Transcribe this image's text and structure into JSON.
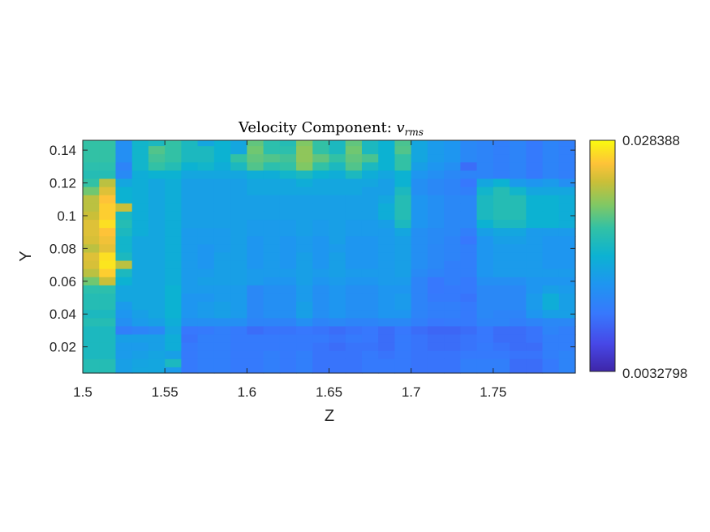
{
  "chart_data": {
    "type": "heatmap",
    "title": "Velocity Component: ",
    "title_symbol": "v",
    "title_subscript": "rms",
    "xlabel": "Z",
    "ylabel": "Y",
    "xlim": [
      1.5,
      1.8
    ],
    "ylim": [
      0.004,
      0.146
    ],
    "xticks": [
      1.5,
      1.55,
      1.6,
      1.65,
      1.7,
      1.75
    ],
    "xtick_labels": [
      "1.5",
      "1.55",
      "1.6",
      "1.65",
      "1.7",
      "1.75"
    ],
    "yticks": [
      0.02,
      0.04,
      0.06,
      0.08,
      0.1,
      0.12,
      0.14
    ],
    "ytick_labels": [
      "0.02",
      "0.04",
      "0.06",
      "0.08",
      "0.1",
      "0.12",
      "0.14"
    ],
    "colorbar": {
      "min": 0.0032798,
      "max": 0.028388,
      "min_label": "0.0032798",
      "max_label": "0.028388",
      "colormap": "parula"
    },
    "z_centers": [
      1.505,
      1.515,
      1.525,
      1.535,
      1.545,
      1.555,
      1.565,
      1.575,
      1.585,
      1.595,
      1.605,
      1.615,
      1.625,
      1.635,
      1.645,
      1.655,
      1.665,
      1.675,
      1.685,
      1.695,
      1.705,
      1.715,
      1.725,
      1.735,
      1.745,
      1.755,
      1.765,
      1.775,
      1.785,
      1.795
    ],
    "y_centers": [
      0.145,
      0.14,
      0.135,
      0.13,
      0.125,
      0.12,
      0.115,
      0.11,
      0.105,
      0.1,
      0.095,
      0.09,
      0.085,
      0.08,
      0.075,
      0.07,
      0.065,
      0.06,
      0.055,
      0.05,
      0.045,
      0.04,
      0.035,
      0.03,
      0.025,
      0.02,
      0.015,
      0.01,
      0.005
    ],
    "values": [
      [
        0.62,
        0.62,
        0.35,
        0.52,
        0.55,
        0.62,
        0.55,
        0.45,
        0.5,
        0.45,
        0.68,
        0.6,
        0.58,
        0.72,
        0.62,
        0.55,
        0.68,
        0.55,
        0.5,
        0.65,
        0.45,
        0.4,
        0.38,
        0.32,
        0.3,
        0.28,
        0.3,
        0.26,
        0.3,
        0.28
      ],
      [
        0.62,
        0.62,
        0.35,
        0.52,
        0.66,
        0.62,
        0.55,
        0.55,
        0.5,
        0.45,
        0.7,
        0.6,
        0.6,
        0.74,
        0.62,
        0.55,
        0.7,
        0.55,
        0.5,
        0.66,
        0.45,
        0.4,
        0.38,
        0.32,
        0.3,
        0.28,
        0.3,
        0.26,
        0.3,
        0.28
      ],
      [
        0.62,
        0.62,
        0.35,
        0.52,
        0.64,
        0.62,
        0.55,
        0.55,
        0.5,
        0.62,
        0.68,
        0.66,
        0.64,
        0.74,
        0.68,
        0.62,
        0.68,
        0.65,
        0.5,
        0.62,
        0.45,
        0.4,
        0.38,
        0.32,
        0.3,
        0.28,
        0.3,
        0.26,
        0.3,
        0.28
      ],
      [
        0.6,
        0.6,
        0.3,
        0.52,
        0.62,
        0.58,
        0.5,
        0.52,
        0.48,
        0.55,
        0.66,
        0.6,
        0.62,
        0.72,
        0.62,
        0.55,
        0.66,
        0.55,
        0.5,
        0.62,
        0.42,
        0.38,
        0.35,
        0.22,
        0.3,
        0.28,
        0.3,
        0.26,
        0.3,
        0.28
      ],
      [
        0.58,
        0.58,
        0.33,
        0.48,
        0.5,
        0.5,
        0.45,
        0.45,
        0.45,
        0.45,
        0.48,
        0.48,
        0.52,
        0.55,
        0.5,
        0.48,
        0.55,
        0.48,
        0.45,
        0.5,
        0.38,
        0.35,
        0.32,
        0.3,
        0.3,
        0.28,
        0.3,
        0.26,
        0.3,
        0.28
      ],
      [
        0.62,
        0.8,
        0.45,
        0.48,
        0.45,
        0.48,
        0.42,
        0.42,
        0.42,
        0.42,
        0.45,
        0.45,
        0.45,
        0.48,
        0.45,
        0.45,
        0.45,
        0.45,
        0.42,
        0.5,
        0.35,
        0.32,
        0.3,
        0.25,
        0.45,
        0.5,
        0.4,
        0.38,
        0.4,
        0.35
      ],
      [
        0.7,
        0.85,
        0.5,
        0.48,
        0.45,
        0.48,
        0.42,
        0.42,
        0.42,
        0.42,
        0.45,
        0.45,
        0.45,
        0.45,
        0.45,
        0.45,
        0.45,
        0.42,
        0.42,
        0.55,
        0.35,
        0.32,
        0.3,
        0.28,
        0.52,
        0.58,
        0.52,
        0.45,
        0.45,
        0.45
      ],
      [
        0.8,
        0.9,
        0.5,
        0.48,
        0.45,
        0.48,
        0.42,
        0.42,
        0.42,
        0.42,
        0.42,
        0.42,
        0.42,
        0.42,
        0.42,
        0.42,
        0.42,
        0.42,
        0.45,
        0.58,
        0.38,
        0.35,
        0.32,
        0.32,
        0.55,
        0.58,
        0.58,
        0.5,
        0.5,
        0.48
      ],
      [
        0.8,
        0.92,
        0.82,
        0.48,
        0.45,
        0.48,
        0.42,
        0.42,
        0.42,
        0.42,
        0.42,
        0.42,
        0.42,
        0.42,
        0.42,
        0.42,
        0.42,
        0.42,
        0.48,
        0.58,
        0.38,
        0.35,
        0.32,
        0.32,
        0.55,
        0.58,
        0.58,
        0.5,
        0.5,
        0.48
      ],
      [
        0.82,
        0.92,
        0.55,
        0.48,
        0.45,
        0.48,
        0.42,
        0.42,
        0.42,
        0.42,
        0.42,
        0.42,
        0.42,
        0.42,
        0.42,
        0.42,
        0.42,
        0.42,
        0.48,
        0.58,
        0.38,
        0.35,
        0.32,
        0.32,
        0.55,
        0.58,
        0.58,
        0.5,
        0.5,
        0.48
      ],
      [
        0.85,
        0.95,
        0.58,
        0.48,
        0.45,
        0.48,
        0.42,
        0.42,
        0.42,
        0.42,
        0.4,
        0.4,
        0.4,
        0.42,
        0.4,
        0.42,
        0.4,
        0.4,
        0.42,
        0.55,
        0.38,
        0.35,
        0.32,
        0.32,
        0.5,
        0.55,
        0.55,
        0.5,
        0.5,
        0.48
      ],
      [
        0.85,
        0.9,
        0.55,
        0.48,
        0.45,
        0.48,
        0.4,
        0.4,
        0.4,
        0.42,
        0.4,
        0.4,
        0.4,
        0.42,
        0.4,
        0.42,
        0.4,
        0.4,
        0.4,
        0.45,
        0.35,
        0.33,
        0.32,
        0.28,
        0.42,
        0.45,
        0.45,
        0.4,
        0.4,
        0.4
      ],
      [
        0.84,
        0.88,
        0.52,
        0.45,
        0.45,
        0.48,
        0.4,
        0.4,
        0.4,
        0.42,
        0.38,
        0.4,
        0.38,
        0.4,
        0.38,
        0.42,
        0.38,
        0.38,
        0.4,
        0.42,
        0.35,
        0.33,
        0.3,
        0.25,
        0.38,
        0.42,
        0.42,
        0.4,
        0.38,
        0.38
      ],
      [
        0.8,
        0.86,
        0.52,
        0.45,
        0.45,
        0.48,
        0.4,
        0.38,
        0.4,
        0.42,
        0.38,
        0.4,
        0.38,
        0.4,
        0.38,
        0.4,
        0.38,
        0.38,
        0.4,
        0.42,
        0.35,
        0.32,
        0.3,
        0.28,
        0.38,
        0.4,
        0.4,
        0.4,
        0.38,
        0.38
      ],
      [
        0.85,
        0.95,
        0.55,
        0.45,
        0.45,
        0.48,
        0.4,
        0.38,
        0.42,
        0.42,
        0.38,
        0.4,
        0.38,
        0.42,
        0.38,
        0.42,
        0.38,
        0.38,
        0.4,
        0.42,
        0.35,
        0.32,
        0.3,
        0.28,
        0.38,
        0.4,
        0.4,
        0.4,
        0.38,
        0.38
      ],
      [
        0.84,
        0.96,
        0.8,
        0.45,
        0.45,
        0.48,
        0.4,
        0.38,
        0.42,
        0.42,
        0.38,
        0.4,
        0.38,
        0.42,
        0.38,
        0.42,
        0.38,
        0.38,
        0.4,
        0.42,
        0.35,
        0.32,
        0.28,
        0.28,
        0.38,
        0.4,
        0.4,
        0.4,
        0.38,
        0.38
      ],
      [
        0.8,
        0.92,
        0.55,
        0.45,
        0.45,
        0.48,
        0.4,
        0.4,
        0.42,
        0.42,
        0.4,
        0.4,
        0.4,
        0.42,
        0.4,
        0.42,
        0.4,
        0.4,
        0.4,
        0.42,
        0.33,
        0.3,
        0.28,
        0.28,
        0.38,
        0.4,
        0.4,
        0.4,
        0.4,
        0.4
      ],
      [
        0.7,
        0.82,
        0.5,
        0.45,
        0.45,
        0.48,
        0.4,
        0.42,
        0.42,
        0.42,
        0.4,
        0.38,
        0.38,
        0.42,
        0.38,
        0.4,
        0.38,
        0.38,
        0.4,
        0.4,
        0.3,
        0.25,
        0.28,
        0.26,
        0.35,
        0.35,
        0.35,
        0.38,
        0.38,
        0.38
      ],
      [
        0.6,
        0.6,
        0.45,
        0.45,
        0.45,
        0.5,
        0.4,
        0.4,
        0.4,
        0.4,
        0.32,
        0.35,
        0.35,
        0.4,
        0.35,
        0.38,
        0.35,
        0.35,
        0.38,
        0.38,
        0.3,
        0.25,
        0.26,
        0.26,
        0.32,
        0.32,
        0.32,
        0.38,
        0.42,
        0.4
      ],
      [
        0.58,
        0.58,
        0.45,
        0.45,
        0.45,
        0.5,
        0.38,
        0.38,
        0.4,
        0.4,
        0.32,
        0.35,
        0.35,
        0.4,
        0.35,
        0.38,
        0.35,
        0.35,
        0.38,
        0.4,
        0.3,
        0.26,
        0.26,
        0.24,
        0.32,
        0.32,
        0.32,
        0.4,
        0.48,
        0.42
      ],
      [
        0.58,
        0.58,
        0.4,
        0.45,
        0.45,
        0.5,
        0.38,
        0.4,
        0.42,
        0.4,
        0.32,
        0.35,
        0.35,
        0.42,
        0.35,
        0.38,
        0.35,
        0.35,
        0.38,
        0.4,
        0.3,
        0.28,
        0.28,
        0.26,
        0.32,
        0.32,
        0.32,
        0.4,
        0.48,
        0.42
      ],
      [
        0.55,
        0.55,
        0.38,
        0.42,
        0.45,
        0.5,
        0.38,
        0.4,
        0.42,
        0.4,
        0.32,
        0.35,
        0.35,
        0.42,
        0.35,
        0.38,
        0.35,
        0.35,
        0.38,
        0.38,
        0.3,
        0.28,
        0.28,
        0.26,
        0.32,
        0.3,
        0.3,
        0.38,
        0.42,
        0.42
      ],
      [
        0.58,
        0.58,
        0.35,
        0.4,
        0.42,
        0.48,
        0.35,
        0.35,
        0.35,
        0.35,
        0.3,
        0.3,
        0.3,
        0.35,
        0.3,
        0.32,
        0.3,
        0.3,
        0.32,
        0.32,
        0.28,
        0.25,
        0.26,
        0.26,
        0.3,
        0.3,
        0.28,
        0.3,
        0.32,
        0.32
      ],
      [
        0.55,
        0.55,
        0.28,
        0.3,
        0.32,
        0.45,
        0.25,
        0.26,
        0.28,
        0.26,
        0.22,
        0.24,
        0.24,
        0.25,
        0.24,
        0.22,
        0.24,
        0.25,
        0.22,
        0.25,
        0.22,
        0.2,
        0.2,
        0.22,
        0.25,
        0.22,
        0.22,
        0.24,
        0.3,
        0.28
      ],
      [
        0.55,
        0.55,
        0.42,
        0.42,
        0.42,
        0.48,
        0.24,
        0.28,
        0.28,
        0.26,
        0.26,
        0.26,
        0.26,
        0.26,
        0.26,
        0.24,
        0.26,
        0.25,
        0.22,
        0.26,
        0.24,
        0.22,
        0.22,
        0.24,
        0.25,
        0.22,
        0.22,
        0.24,
        0.28,
        0.28
      ],
      [
        0.55,
        0.55,
        0.4,
        0.4,
        0.42,
        0.48,
        0.26,
        0.28,
        0.28,
        0.26,
        0.26,
        0.26,
        0.26,
        0.26,
        0.24,
        0.22,
        0.24,
        0.24,
        0.22,
        0.26,
        0.24,
        0.22,
        0.22,
        0.24,
        0.26,
        0.24,
        0.22,
        0.22,
        0.28,
        0.28
      ],
      [
        0.55,
        0.55,
        0.4,
        0.42,
        0.44,
        0.42,
        0.26,
        0.28,
        0.28,
        0.26,
        0.26,
        0.28,
        0.26,
        0.28,
        0.24,
        0.24,
        0.24,
        0.26,
        0.24,
        0.26,
        0.24,
        0.24,
        0.24,
        0.26,
        0.26,
        0.26,
        0.24,
        0.24,
        0.28,
        0.3
      ],
      [
        0.58,
        0.58,
        0.42,
        0.44,
        0.45,
        0.55,
        0.26,
        0.28,
        0.28,
        0.26,
        0.26,
        0.28,
        0.26,
        0.28,
        0.24,
        0.24,
        0.24,
        0.26,
        0.26,
        0.26,
        0.24,
        0.24,
        0.24,
        0.28,
        0.28,
        0.28,
        0.22,
        0.22,
        0.26,
        0.3
      ],
      [
        0.58,
        0.58,
        0.42,
        0.45,
        0.45,
        0.4,
        0.26,
        0.28,
        0.28,
        0.26,
        0.26,
        0.28,
        0.26,
        0.28,
        0.24,
        0.24,
        0.24,
        0.26,
        0.26,
        0.26,
        0.24,
        0.24,
        0.24,
        0.28,
        0.28,
        0.28,
        0.22,
        0.22,
        0.26,
        0.3
      ]
    ]
  }
}
